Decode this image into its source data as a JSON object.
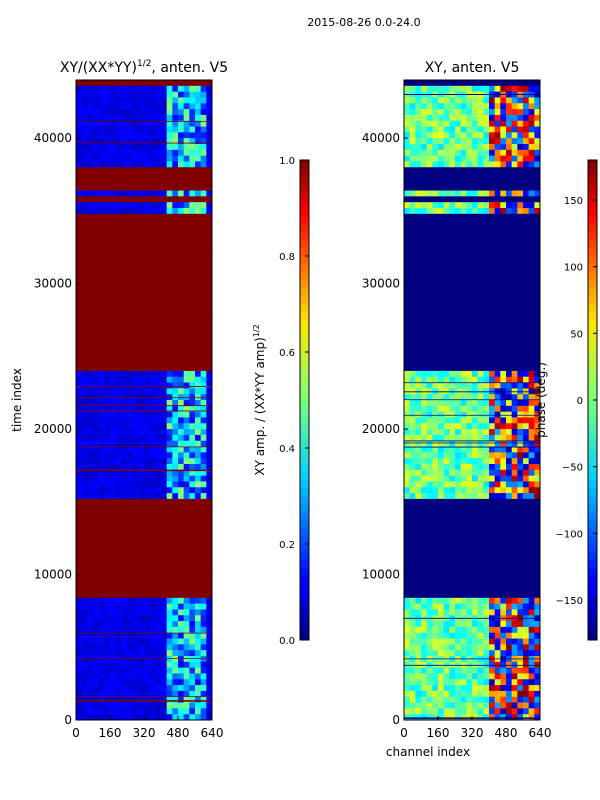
{
  "figure": {
    "suptitle": "2015-08-26 0.0-24.0"
  },
  "chart_data": [
    {
      "type": "heatmap",
      "title_main": "XY/(XX*YY)",
      "title_exp": "1/2",
      "title_suffix": ", anten. V5",
      "xlabel": "",
      "ylabel": "time index",
      "xlim": [
        0,
        640
      ],
      "ylim": [
        0,
        44000
      ],
      "xticks": [
        0,
        160,
        320,
        480,
        640
      ],
      "yticks": [
        0,
        10000,
        20000,
        30000,
        40000
      ],
      "colorbar": {
        "label_main": "XY amp. / (XX*YY amp)",
        "label_exp": "1/2",
        "vmin": 0.0,
        "vmax": 1.0,
        "ticks": [
          "0.0",
          "0.2",
          "0.4",
          "0.6",
          "0.8",
          "1.0"
        ]
      },
      "saturated_time_blocks": [
        [
          8300,
          15100
        ],
        [
          24200,
          34900
        ],
        [
          35500,
          35800
        ],
        [
          36300,
          37800
        ]
      ],
      "active_channel_range": [
        420,
        620
      ]
    },
    {
      "type": "heatmap",
      "title_main": "XY, anten. V5",
      "xlabel": "channel index",
      "ylabel": "",
      "xlim": [
        0,
        640
      ],
      "ylim": [
        0,
        44000
      ],
      "xticks": [
        0,
        160,
        320,
        480,
        640
      ],
      "yticks": [
        0,
        10000,
        20000,
        30000,
        40000
      ],
      "colorbar": {
        "label_main": "phase (deg.)",
        "vmin": -180,
        "vmax": 180,
        "ticks": [
          "150",
          "100",
          "50",
          "0",
          "−50",
          "−100",
          "−150"
        ]
      },
      "masked_time_blocks": [
        [
          8300,
          15100
        ],
        [
          24200,
          34900
        ],
        [
          35500,
          35800
        ],
        [
          36300,
          37800
        ]
      ],
      "active_channel_range": [
        400,
        640
      ]
    }
  ]
}
